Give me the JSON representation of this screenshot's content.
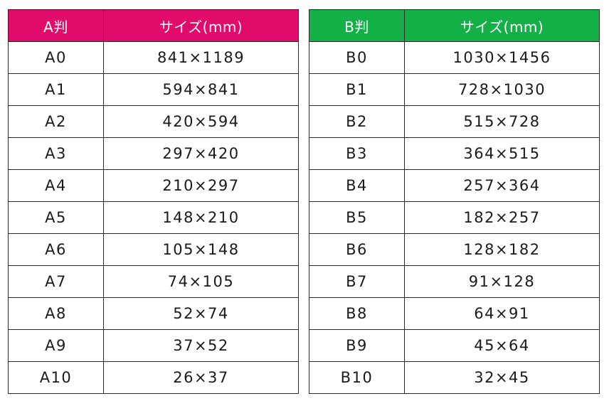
{
  "colors": {
    "a_header": "#e10b6c",
    "b_header": "#13b048"
  },
  "a_table": {
    "headers": [
      "A判",
      "サイズ(mm)"
    ],
    "rows": [
      [
        "A0",
        "841×1189"
      ],
      [
        "A1",
        "594×841"
      ],
      [
        "A2",
        "420×594"
      ],
      [
        "A3",
        "297×420"
      ],
      [
        "A4",
        "210×297"
      ],
      [
        "A5",
        "148×210"
      ],
      [
        "A6",
        "105×148"
      ],
      [
        "A7",
        "74×105"
      ],
      [
        "A8",
        "52×74"
      ],
      [
        "A9",
        "37×52"
      ],
      [
        "A10",
        "26×37"
      ]
    ]
  },
  "b_table": {
    "headers": [
      "B判",
      "サイズ(mm)"
    ],
    "rows": [
      [
        "B0",
        "1030×1456"
      ],
      [
        "B1",
        "728×1030"
      ],
      [
        "B2",
        "515×728"
      ],
      [
        "B3",
        "364×515"
      ],
      [
        "B4",
        "257×364"
      ],
      [
        "B5",
        "182×257"
      ],
      [
        "B6",
        "128×182"
      ],
      [
        "B7",
        "91×128"
      ],
      [
        "B8",
        "64×91"
      ],
      [
        "B9",
        "45×64"
      ],
      [
        "B10",
        "32×45"
      ]
    ]
  }
}
